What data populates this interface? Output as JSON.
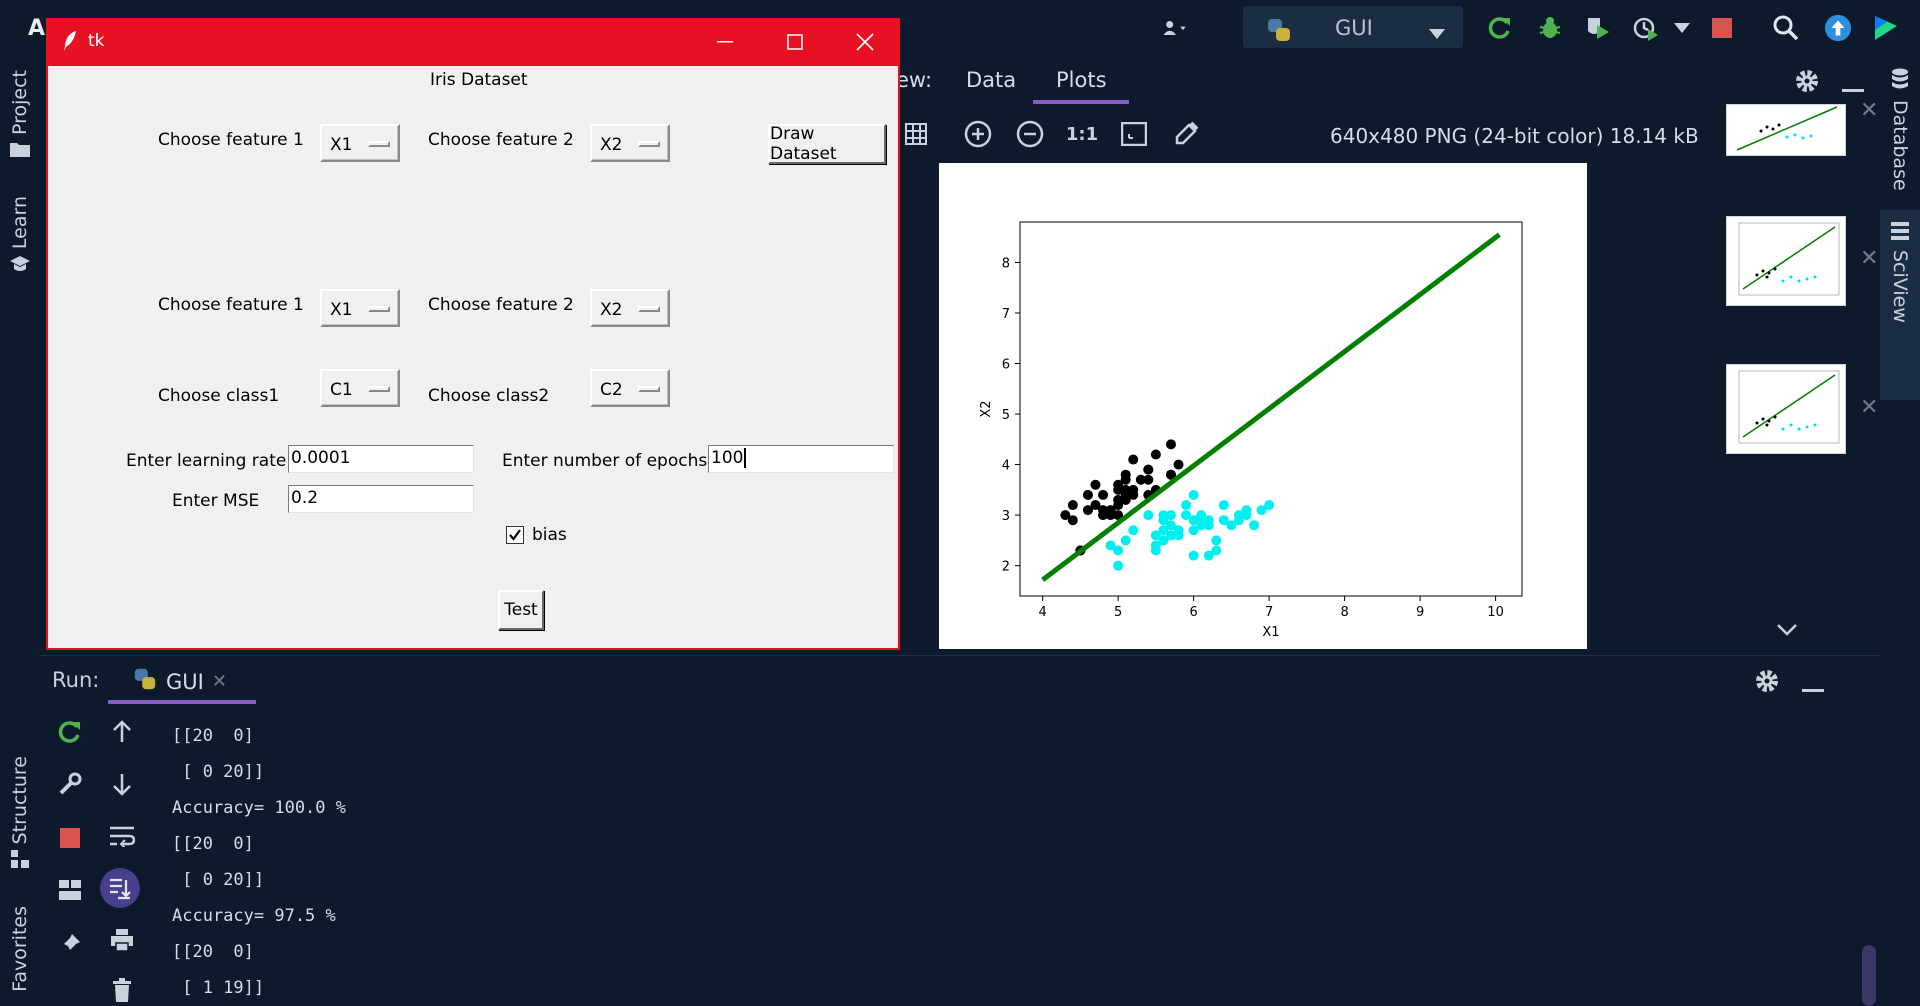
{
  "ide": {
    "app_letter": "A",
    "run_config": {
      "label": "GUI"
    },
    "accent_color": "#8a5cc7"
  },
  "left_strip": {
    "tabs": [
      "Project",
      "Learn",
      "Structure",
      "Favorites"
    ]
  },
  "right_strip": {
    "tabs": [
      "Database",
      "SciView"
    ]
  },
  "sciview": {
    "view_prefix": "ew:",
    "tabs": [
      "Data",
      "Plots"
    ],
    "active_tab": "Plots",
    "image_info": "640x480 PNG (24-bit color) 18.14 kB",
    "zoom_actual_label": "1:1"
  },
  "tk_window": {
    "title": "tk",
    "heading": "Iris Dataset",
    "row1": {
      "feature1_label": "Choose feature 1",
      "feature1_value": "X1",
      "feature2_label": "Choose feature 2",
      "feature2_value": "X2",
      "draw_button": "Draw Dataset"
    },
    "row2": {
      "feature1_label": "Choose feature 1",
      "feature1_value": "X1",
      "feature2_label": "Choose feature 2",
      "feature2_value": "X2"
    },
    "row3": {
      "class1_label": "Choose class1",
      "class1_value": "C1",
      "class2_label": "Choose class2",
      "class2_value": "C2"
    },
    "learning_rate": {
      "label": "Enter learning rate",
      "value": "0.0001"
    },
    "epochs": {
      "label": "Enter number of epochs",
      "value": "100"
    },
    "mse": {
      "label": "Enter MSE",
      "value": "0.2"
    },
    "bias": {
      "label": "bias",
      "checked": true
    },
    "test_button": "Test",
    "title_color": "#e81123"
  },
  "run_panel": {
    "title": "Run:",
    "tab_label": "GUI",
    "console_lines": [
      "[[20  0]",
      " [ 0 20]]",
      "Accuracy= 100.0 %",
      "[[20  0]",
      " [ 0 20]]",
      "Accuracy= 97.5 %",
      "[[20  0]",
      " [ 1 19]]"
    ]
  },
  "chart_data": {
    "type": "scatter",
    "xlabel": "X1",
    "ylabel": "X2",
    "xlim": [
      3.7,
      10.35
    ],
    "ylim": [
      1.4,
      8.8
    ],
    "xticks": [
      4,
      5,
      6,
      7,
      8,
      9,
      10
    ],
    "yticks": [
      2,
      3,
      4,
      5,
      6,
      7,
      8
    ],
    "line": {
      "color": "#007f00",
      "x": [
        4.0,
        10.05
      ],
      "y": [
        1.72,
        8.55
      ]
    },
    "series": [
      {
        "color": "#000000",
        "x": [
          4.3,
          4.4,
          4.4,
          4.5,
          4.6,
          4.6,
          4.7,
          4.7,
          4.8,
          4.8,
          4.8,
          4.9,
          4.9,
          5.0,
          5.0,
          5.0,
          5.0,
          5.0,
          5.1,
          5.1,
          5.1,
          5.1,
          5.1,
          5.2,
          5.2,
          5.3,
          5.4,
          5.4,
          5.4,
          5.5,
          5.5,
          5.7,
          5.7,
          5.8,
          4.5,
          5.2,
          5.4,
          5.7
        ],
        "y": [
          3.0,
          2.9,
          3.2,
          2.3,
          3.1,
          3.4,
          3.2,
          3.6,
          3.0,
          3.4,
          3.1,
          3.0,
          3.1,
          3.0,
          3.2,
          3.3,
          3.5,
          3.6,
          3.4,
          3.5,
          3.7,
          3.8,
          3.3,
          3.4,
          4.1,
          3.7,
          3.4,
          3.9,
          3.7,
          3.5,
          4.2,
          3.8,
          4.4,
          4.0,
          2.3,
          3.5,
          3.9,
          3.8
        ]
      },
      {
        "color": "#00f0f0",
        "x": [
          4.9,
          5.0,
          5.0,
          5.1,
          5.2,
          5.4,
          5.5,
          5.5,
          5.5,
          5.6,
          5.6,
          5.6,
          5.7,
          5.7,
          5.7,
          5.8,
          5.8,
          5.9,
          5.9,
          6.0,
          6.0,
          6.0,
          6.1,
          6.1,
          6.1,
          6.2,
          6.2,
          6.3,
          6.3,
          6.4,
          6.4,
          6.5,
          6.6,
          6.6,
          6.7,
          6.7,
          6.8,
          6.9,
          7.0,
          6.0,
          6.2,
          5.6
        ],
        "y": [
          2.4,
          2.0,
          2.3,
          2.5,
          2.7,
          3.0,
          2.3,
          2.4,
          2.6,
          2.5,
          2.7,
          2.9,
          2.6,
          2.8,
          3.0,
          2.7,
          2.6,
          3.0,
          3.2,
          2.2,
          2.9,
          3.4,
          2.8,
          3.0,
          2.9,
          2.2,
          2.9,
          2.3,
          2.5,
          2.9,
          3.2,
          2.8,
          2.9,
          3.0,
          3.1,
          3.0,
          2.8,
          3.1,
          3.2,
          2.7,
          2.8,
          3.0
        ]
      }
    ]
  }
}
